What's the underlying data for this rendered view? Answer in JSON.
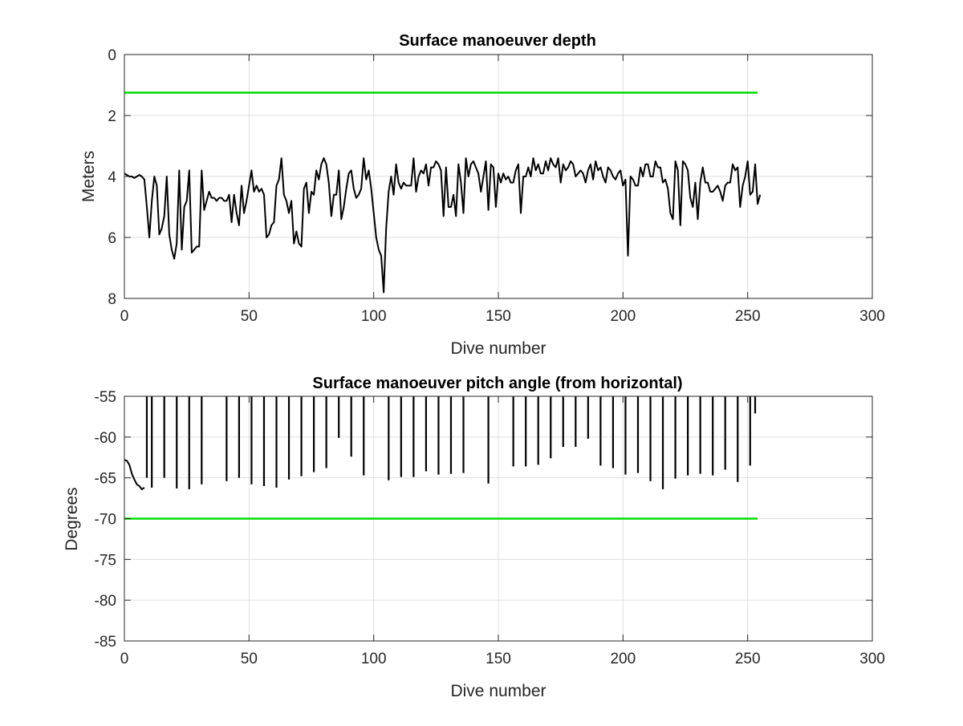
{
  "chart_data": [
    {
      "type": "line",
      "title": "Surface manoeuver depth",
      "xlabel": "Dive number",
      "ylabel": "Meters",
      "xlim": [
        0,
        300
      ],
      "ylim": [
        0,
        8
      ],
      "y_reversed": true,
      "grid": true,
      "xticks": [
        "0",
        "50",
        "100",
        "150",
        "200",
        "250",
        "300"
      ],
      "yticks": [
        "0",
        "2",
        "4",
        "6",
        "8"
      ],
      "reference_line": {
        "y": 1.25,
        "x": [
          0,
          254
        ],
        "color": "#00dd00"
      },
      "series": [
        {
          "color": "#000000",
          "x": [
            0,
            1,
            2,
            3,
            4,
            5,
            6,
            7,
            8,
            9,
            10,
            11,
            12,
            13,
            14,
            15,
            16,
            17,
            18,
            19,
            20,
            21,
            22,
            23,
            24,
            25,
            26,
            27,
            28,
            29,
            30,
            31,
            32,
            33,
            34,
            35,
            36,
            37,
            38,
            39,
            40,
            41,
            42,
            43,
            44,
            45,
            46,
            47,
            48,
            49,
            50,
            51,
            52,
            53,
            54,
            55,
            56,
            57,
            58,
            59,
            60,
            61,
            62,
            63,
            64,
            65,
            66,
            67,
            68,
            69,
            70,
            71,
            72,
            73,
            74,
            75,
            76,
            77,
            78,
            79,
            80,
            81,
            82,
            83,
            84,
            85,
            86,
            87,
            88,
            89,
            90,
            91,
            92,
            93,
            94,
            95,
            96,
            97,
            98,
            99,
            100,
            101,
            102,
            103,
            104,
            105,
            106,
            107,
            108,
            109,
            110,
            111,
            112,
            113,
            114,
            115,
            116,
            117,
            118,
            119,
            120,
            121,
            122,
            123,
            124,
            125,
            126,
            127,
            128,
            129,
            130,
            131,
            132,
            133,
            134,
            135,
            136,
            137,
            138,
            139,
            140,
            141,
            142,
            143,
            144,
            145,
            146,
            147,
            148,
            149,
            150,
            151,
            152,
            153,
            154,
            155,
            156,
            157,
            158,
            159,
            160,
            161,
            162,
            163,
            164,
            165,
            166,
            167,
            168,
            169,
            170,
            171,
            172,
            173,
            174,
            175,
            176,
            177,
            178,
            179,
            180,
            181,
            182,
            183,
            184,
            185,
            186,
            187,
            188,
            189,
            190,
            191,
            192,
            193,
            194,
            195,
            196,
            197,
            198,
            199,
            200,
            201,
            202,
            203,
            204,
            205,
            206,
            207,
            208,
            209,
            210,
            211,
            212,
            213,
            214,
            215,
            216,
            217,
            218,
            219,
            220,
            221,
            222,
            223,
            224,
            225,
            226,
            227,
            228,
            229,
            230,
            231,
            232,
            233,
            234,
            235,
            236,
            237,
            238,
            239,
            240,
            241,
            242,
            243,
            244,
            245,
            246,
            247,
            248,
            249,
            250,
            251,
            252,
            253,
            254,
            255
          ],
          "y": [
            3.9,
            3.95,
            4.0,
            4.0,
            4.05,
            4.0,
            3.95,
            4.0,
            4.1,
            5.0,
            6.0,
            4.8,
            4.0,
            4.3,
            5.9,
            5.7,
            5.3,
            4.0,
            5.9,
            6.4,
            6.7,
            6.2,
            3.8,
            6.4,
            5.0,
            4.8,
            3.8,
            6.5,
            6.4,
            6.3,
            6.3,
            3.8,
            5.1,
            4.8,
            4.5,
            4.7,
            4.7,
            4.8,
            4.7,
            4.7,
            4.8,
            4.8,
            4.6,
            5.5,
            4.6,
            5.2,
            5.6,
            4.3,
            5.2,
            4.8,
            4.3,
            3.8,
            4.5,
            4.3,
            4.5,
            4.4,
            4.6,
            6.0,
            5.9,
            5.6,
            5.5,
            4.3,
            4.1,
            3.4,
            4.6,
            4.8,
            5.2,
            4.8,
            6.2,
            5.8,
            6.2,
            6.3,
            4.4,
            4.2,
            5.2,
            4.5,
            4.6,
            3.8,
            4.1,
            3.6,
            3.4,
            3.6,
            4.2,
            5.3,
            4.6,
            4.6,
            3.8,
            5.4,
            5.0,
            4.4,
            3.9,
            3.8,
            4.4,
            4.7,
            4.6,
            4.4,
            3.4,
            4.1,
            3.8,
            4.4,
            5.2,
            6.0,
            6.4,
            6.6,
            7.8,
            5.7,
            4.5,
            4.0,
            4.6,
            3.6,
            4.2,
            4.4,
            4.2,
            4.3,
            4.3,
            4.3,
            3.4,
            4.5,
            4.0,
            3.8,
            3.9,
            3.6,
            4.3,
            3.7,
            3.7,
            3.5,
            3.6,
            3.8,
            5.3,
            3.7,
            5.0,
            5.0,
            4.6,
            5.3,
            3.6,
            4.2,
            5.2,
            3.4,
            4.0,
            3.6,
            3.5,
            3.7,
            3.9,
            4.5,
            4.0,
            3.5,
            5.1,
            3.6,
            3.7,
            5.0,
            3.9,
            4.2,
            3.9,
            4.1,
            4.0,
            4.2,
            4.2,
            3.8,
            3.6,
            5.2,
            4.0,
            4.0,
            3.7,
            4.0,
            3.4,
            3.8,
            3.6,
            3.9,
            3.9,
            3.5,
            3.8,
            3.4,
            3.6,
            3.7,
            3.4,
            4.2,
            3.6,
            3.8,
            3.7,
            3.5,
            3.6,
            4.0,
            3.9,
            3.8,
            3.9,
            4.2,
            3.8,
            3.6,
            4.1,
            3.5,
            3.8,
            3.7,
            4.0,
            4.2,
            3.7,
            3.8,
            4.0,
            4.1,
            3.9,
            3.8,
            4.3,
            4.1,
            6.6,
            4.0,
            4.1,
            4.3,
            4.3,
            3.7,
            4.0,
            3.6,
            3.6,
            4.0,
            4.0,
            3.5,
            3.7,
            3.7,
            4.2,
            4.1,
            4.4,
            5.2,
            5.4,
            3.5,
            3.8,
            5.6,
            3.5,
            3.6,
            3.8,
            4.7,
            5.0,
            4.2,
            5.4,
            4.2,
            3.7,
            4.2,
            4.2,
            4.5,
            4.5,
            4.4,
            4.3,
            4.5,
            4.8,
            4.3,
            4.2,
            4.2,
            3.6,
            3.8,
            3.7,
            5.0,
            4.3,
            4.0,
            3.5,
            4.6,
            4.5,
            3.6,
            4.9,
            4.6
          ]
        }
      ]
    },
    {
      "type": "line",
      "title": "Surface manoeuver pitch angle (from horizontal)",
      "xlabel": "Dive number",
      "ylabel": "Degrees",
      "xlim": [
        0,
        300
      ],
      "ylim": [
        -85,
        -55
      ],
      "grid": true,
      "xticks": [
        "0",
        "50",
        "100",
        "150",
        "200",
        "250",
        "300"
      ],
      "yticks": [
        "-55",
        "-60",
        "-65",
        "-70",
        "-75",
        "-80",
        "-85"
      ],
      "reference_line": {
        "y": -70,
        "x": [
          0,
          254
        ],
        "color": "#00dd00"
      },
      "series": [
        {
          "color": "#000000",
          "initial_curve": {
            "x": [
              0,
              1,
              2,
              3,
              4,
              5,
              6,
              7,
              8
            ],
            "y": [
              -62.8,
              -62.9,
              -63.4,
              -64.5,
              -65.2,
              -65.8,
              -66.0,
              -66.4,
              -66.2
            ]
          },
          "spike_top": -55,
          "spikes_x": [
            9,
            11,
            16,
            21,
            26,
            31,
            41,
            46,
            51,
            56,
            61,
            66,
            71,
            76,
            81,
            86,
            91,
            96,
            106,
            111,
            116,
            121,
            126,
            131,
            136,
            146,
            156,
            161,
            166,
            171,
            176,
            181,
            186,
            191,
            196,
            201,
            206,
            211,
            216,
            221,
            226,
            231,
            236,
            241,
            246,
            251,
            253
          ],
          "spikes_min": [
            -65.0,
            -66.2,
            -65.0,
            -66.3,
            -66.4,
            -65.8,
            -65.4,
            -65.0,
            -65.8,
            -66.0,
            -66.2,
            -65.2,
            -64.8,
            -64.3,
            -63.8,
            -60.1,
            -62.4,
            -64.7,
            -65.3,
            -64.9,
            -64.9,
            -64.2,
            -64.6,
            -64.5,
            -64.4,
            -65.7,
            -63.6,
            -63.6,
            -63.4,
            -62.6,
            -61.2,
            -61.2,
            -60.2,
            -63.5,
            -63.8,
            -64.6,
            -64.4,
            -65.4,
            -66.4,
            -65.1,
            -64.7,
            -64.5,
            -64.7,
            -64.0,
            -65.5,
            -63.5,
            -57.1
          ]
        }
      ]
    }
  ]
}
